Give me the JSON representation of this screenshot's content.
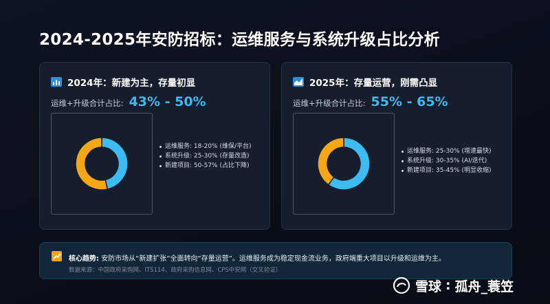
{
  "title": "2024-2025年安防招标：运维服务与系统升级占比分析",
  "cards": [
    {
      "heading": "2024年：新建为主，存量初显",
      "ratio_label": "运维+升级合计占比:",
      "ratio_value": "43% - 50%",
      "icon": "bar-chart-icon",
      "legend": [
        "运维服务: 18-20% (维保/平台)",
        "系统升级: 25-30% (存量改造)",
        "新建项目: 50-57% (占比下降)"
      ]
    },
    {
      "heading": "2025年：存量运营，刚需凸显",
      "ratio_label": "运维+升级合计占比:",
      "ratio_value": "55% - 65%",
      "icon": "area-chart-icon",
      "legend": [
        "运维服务: 25-30% (增速最快)",
        "系统升级: 30-35% (AI/迭代)",
        "新建项目: 35-45% (明显收缩)"
      ]
    }
  ],
  "chart_data": [
    {
      "type": "pie",
      "donut": true,
      "categories": [
        "运维+升级",
        "新建项目"
      ],
      "values": [
        46.5,
        53.5
      ],
      "colors": [
        "#3cbcf0",
        "#f7a714"
      ]
    },
    {
      "type": "pie",
      "donut": true,
      "categories": [
        "运维+升级",
        "新建项目"
      ],
      "values": [
        60,
        40
      ],
      "colors": [
        "#3cbcf0",
        "#f7a714"
      ]
    }
  ],
  "trend": {
    "label": "核心趋势:",
    "text": "安防市场从“新建扩张”全面转向“存量运营”。运维服务成为稳定现金流业务，政府端重大项目以升级和运维为主。",
    "source": "数据来源：中国政府采购网、ITS114、政府采购信息网、CPS中安网（交叉验证）"
  },
  "watermark": {
    "brand": "雪球",
    "separator": ":",
    "author": "孤舟_蓑笠"
  },
  "colors": {
    "accent": "#3fb9f2",
    "orange": "#f7a714",
    "card_bg": "#161e2d"
  }
}
